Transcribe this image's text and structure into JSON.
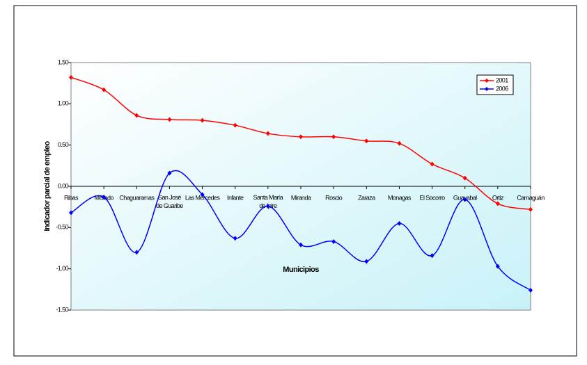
{
  "chart_data": {
    "type": "line",
    "y_label": "Indicador parcial de empleo",
    "x_label": "Municipios",
    "categories": [
      "Ribas",
      "Mellado",
      "Chaguaramas",
      "San José de Guaribe",
      "Las Mercedes",
      "Infante",
      "Santa María de Ipire",
      "Miranda",
      "Roscio",
      "Zaraza",
      "Monagas",
      "El Socorro",
      "Guayabal",
      "Ortiz",
      "Camaguán"
    ],
    "series": [
      {
        "name": "2001",
        "color": "#ff0000",
        "values": [
          1.32,
          1.17,
          0.86,
          0.81,
          0.8,
          0.74,
          0.64,
          0.6,
          0.6,
          0.55,
          0.52,
          0.27,
          0.1,
          -0.21,
          -0.28
        ]
      },
      {
        "name": "2006",
        "color": "#0000ff",
        "values": [
          -0.32,
          -0.13,
          -0.8,
          0.16,
          -0.1,
          -0.63,
          -0.24,
          -0.71,
          -0.67,
          -0.91,
          -0.45,
          -0.84,
          -0.16,
          -0.97,
          -1.26
        ]
      }
    ],
    "ylim": [
      -1.5,
      1.5
    ],
    "yticks": [
      {
        "value": 1.5,
        "label": "1.50"
      },
      {
        "value": 1.0,
        "label": "1.00"
      },
      {
        "value": 0.5,
        "label": "0.50"
      },
      {
        "value": 0,
        "label": "0.00"
      },
      {
        "value": -0.5,
        "label": "-0.50"
      },
      {
        "value": -1.0,
        "label": "-1.00"
      },
      {
        "value": -1.5,
        "label": "-1.50"
      }
    ],
    "legend": "top-right"
  }
}
